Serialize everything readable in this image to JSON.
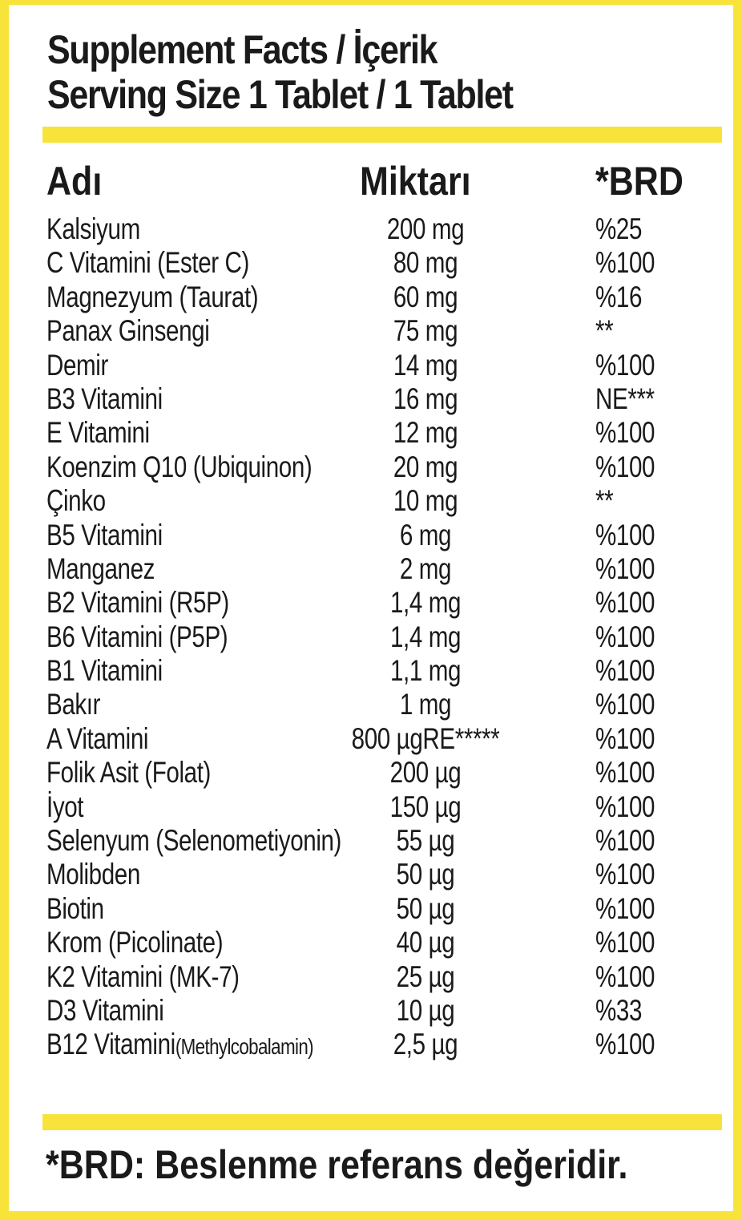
{
  "header": {
    "title_line1": "Supplement Facts / İçerik",
    "title_line2": "Serving Size 1 Tablet / 1 Tablet"
  },
  "table": {
    "columns": [
      "Adı",
      "Miktarı",
      "*BRD"
    ],
    "rows": [
      {
        "name": "Kalsiyum",
        "amount": "200 mg",
        "rda": "%25"
      },
      {
        "name": "C Vitamini (Ester C)",
        "amount": "80 mg",
        "rda": "%100"
      },
      {
        "name": "Magnezyum (Taurat)",
        "amount": "60 mg",
        "rda": "%16"
      },
      {
        "name": "Panax Ginsengi",
        "amount": "75 mg",
        "rda": "**"
      },
      {
        "name": "Demir",
        "amount": "14 mg",
        "rda": "%100"
      },
      {
        "name": "B3 Vitamini",
        "amount": "16 mg",
        "rda": "NE***"
      },
      {
        "name": "E Vitamini",
        "amount": "12 mg",
        "rda": "%100"
      },
      {
        "name": "Koenzim Q10 (Ubiquinon)",
        "amount": "20 mg",
        "rda": "%100"
      },
      {
        "name": "Çinko",
        "amount": "10 mg",
        "rda": "**"
      },
      {
        "name": "B5 Vitamini",
        "amount": "6 mg",
        "rda": "%100"
      },
      {
        "name": "Manganez",
        "amount": "2 mg",
        "rda": "%100"
      },
      {
        "name": "B2 Vitamini (R5P)",
        "amount": "1,4 mg",
        "rda": "%100"
      },
      {
        "name": "B6 Vitamini (P5P)",
        "amount": "1,4 mg",
        "rda": "%100"
      },
      {
        "name": "B1 Vitamini",
        "amount": "1,1 mg",
        "rda": "%100"
      },
      {
        "name": "Bakır",
        "amount": "1 mg",
        "rda": "%100"
      },
      {
        "name": "A Vitamini",
        "amount": "800 µgRE*****",
        "rda": "%100"
      },
      {
        "name": "Folik Asit (Folat)",
        "amount": "200 µg",
        "rda": "%100"
      },
      {
        "name": "İyot",
        "amount": "150 µg",
        "rda": "%100"
      },
      {
        "name": "Selenyum (Selenometiyonin)",
        "amount": "55 µg",
        "rda": "%100"
      },
      {
        "name": "Molibden",
        "amount": "50 µg",
        "rda": "%100"
      },
      {
        "name": "Biotin",
        "amount": "50 µg",
        "rda": "%100"
      },
      {
        "name": "Krom (Picolinate)",
        "amount": "40 µg",
        "rda": "%100"
      },
      {
        "name": "K2 Vitamini (MK-7)",
        "amount": "25 µg",
        "rda": "%100"
      },
      {
        "name": "D3 Vitamini",
        "amount": "10 µg",
        "rda": "%33"
      },
      {
        "name": "B12 Vitamini",
        "name_suffix": "(Methylcobalamin)",
        "amount": "2,5 µg",
        "rda": "%100"
      }
    ]
  },
  "footer": {
    "note": "*BRD: Beslenme referans değeridir."
  },
  "colors": {
    "accent_yellow": "#f7e33a",
    "text": "#1a1a1a"
  }
}
